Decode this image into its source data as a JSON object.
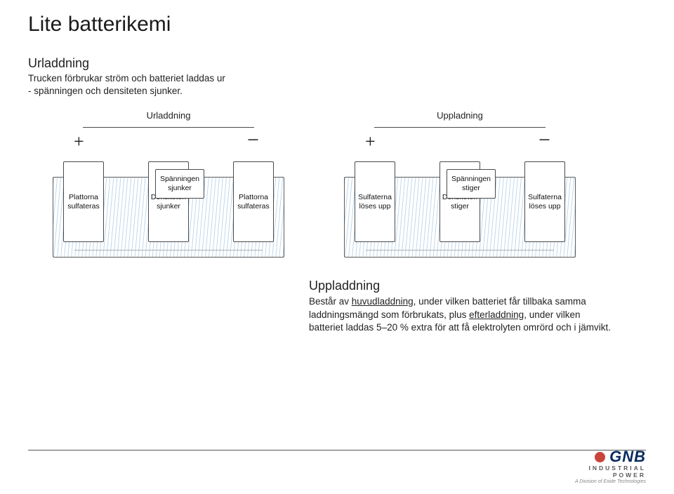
{
  "title": "Lite batterikemi",
  "discharge": {
    "heading": "Urladdning",
    "body_line1": "Trucken förbrukar ström och batteriet laddas ur",
    "body_line2": "- spänningen och densiteten sjunker."
  },
  "diagrams": {
    "left": {
      "title": "Urladdning",
      "electrolyte": "Spänningen sjunker",
      "sign_left": "+",
      "sign_right": "−",
      "plate_left": "Plattorna sulfateras",
      "plate_center": "Densiteten sjunker",
      "plate_right": "Plattorna sulfateras"
    },
    "right": {
      "title": "Uppladning",
      "electrolyte": "Spänningen stiger",
      "sign_left": "+",
      "sign_right": "−",
      "plate_left": "Sulfaterna löses upp",
      "plate_center": "Densiteten stiger",
      "plate_right": "Sulfaterna löses upp"
    },
    "style": {
      "hatch_color": "#7aa8d1",
      "border_color": "#4a4a4a",
      "casing_border": "#5c5c5c",
      "label_fontsize": 10.5
    }
  },
  "charging": {
    "heading": "Uppladdning",
    "body_html": "Består av <u>huvudladdning</u>, under vilken batteriet får tillbaka samma laddningsmängd som förbrukats, plus <u>efterladdning</u>, under vilken batteriet laddas 5–20 % extra för att få elektrolyten omrörd och i jämvikt."
  },
  "footer": {
    "brand": "GNB",
    "sub1": "INDUSTRIAL POWER",
    "sub2": "A Division of Exide Technologies"
  },
  "colors": {
    "title": "#1a1a1a",
    "text": "#222222",
    "brand": "#062a5e",
    "brand_dot": "#c9443a",
    "rule": "#555555"
  }
}
